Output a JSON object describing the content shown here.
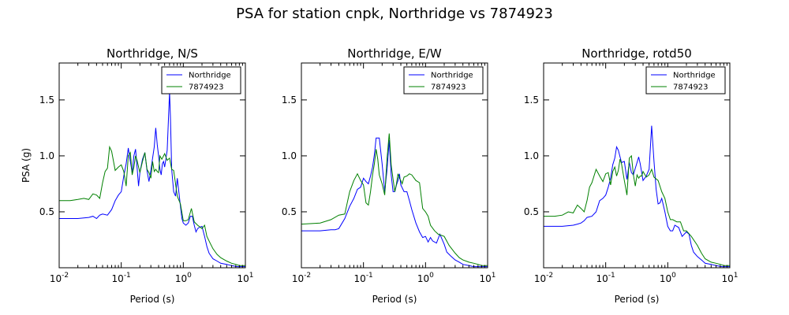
{
  "figure_title": "PSA for station cnpk, Northridge vs 7874923",
  "colors": {
    "Northridge": "#0000ff",
    "7874923": "#008000"
  },
  "chart_data": [
    {
      "type": "line",
      "title": "Northridge, N/S",
      "xlabel": "Period (s)",
      "ylabel": "PSA (g)",
      "xscale": "log",
      "xlim": [
        0.01,
        10
      ],
      "ylim": [
        0,
        1.83
      ],
      "xticks": [
        {
          "v": 0.01,
          "base": "10",
          "exp": "-2"
        },
        {
          "v": 0.1,
          "base": "10",
          "exp": "-1"
        },
        {
          "v": 1,
          "base": "10",
          "exp": "0"
        },
        {
          "v": 10,
          "base": "10",
          "exp": "1"
        }
      ],
      "yticks": [
        0.5,
        1.0,
        1.5
      ],
      "ytick_labels": [
        "0.5",
        "1.0",
        "1.5"
      ],
      "legend": "top-right",
      "series": [
        {
          "name": "Northridge",
          "color": "#0000ff",
          "x": [
            0.01,
            0.02,
            0.03,
            0.035,
            0.04,
            0.045,
            0.05,
            0.06,
            0.07,
            0.08,
            0.09,
            0.1,
            0.11,
            0.12,
            0.13,
            0.14,
            0.15,
            0.16,
            0.17,
            0.18,
            0.19,
            0.2,
            0.22,
            0.24,
            0.26,
            0.28,
            0.3,
            0.32,
            0.34,
            0.36,
            0.38,
            0.4,
            0.42,
            0.44,
            0.46,
            0.48,
            0.5,
            0.55,
            0.6,
            0.62,
            0.65,
            0.7,
            0.75,
            0.8,
            0.85,
            0.9,
            0.95,
            1.0,
            1.1,
            1.2,
            1.3,
            1.4,
            1.5,
            1.6,
            1.7,
            1.8,
            2.0,
            2.2,
            2.4,
            2.6,
            3.0,
            3.5,
            4.0,
            5.0,
            6.0,
            7.5,
            10.0
          ],
          "y": [
            0.44,
            0.44,
            0.45,
            0.46,
            0.44,
            0.47,
            0.48,
            0.47,
            0.52,
            0.6,
            0.65,
            0.68,
            0.82,
            0.93,
            1.07,
            0.95,
            0.85,
            1.0,
            1.06,
            0.9,
            0.73,
            0.85,
            0.97,
            1.03,
            0.87,
            0.77,
            0.87,
            0.98,
            1.08,
            1.25,
            1.1,
            1.0,
            0.88,
            0.83,
            0.93,
            0.95,
            0.9,
            1.05,
            1.57,
            1.35,
            0.88,
            0.68,
            0.64,
            0.8,
            0.67,
            0.55,
            0.44,
            0.4,
            0.38,
            0.4,
            0.46,
            0.46,
            0.38,
            0.32,
            0.35,
            0.36,
            0.37,
            0.28,
            0.19,
            0.13,
            0.08,
            0.06,
            0.04,
            0.03,
            0.02,
            0.01,
            0.01
          ]
        },
        {
          "name": "7874923",
          "color": "#008000",
          "x": [
            0.01,
            0.015,
            0.02,
            0.025,
            0.03,
            0.035,
            0.04,
            0.045,
            0.05,
            0.055,
            0.06,
            0.065,
            0.07,
            0.08,
            0.09,
            0.1,
            0.11,
            0.12,
            0.13,
            0.14,
            0.15,
            0.16,
            0.17,
            0.18,
            0.2,
            0.22,
            0.24,
            0.26,
            0.28,
            0.3,
            0.32,
            0.34,
            0.36,
            0.38,
            0.4,
            0.42,
            0.45,
            0.5,
            0.55,
            0.6,
            0.65,
            0.7,
            0.8,
            0.9,
            1.0,
            1.1,
            1.2,
            1.35,
            1.5,
            1.7,
            2.0,
            2.2,
            2.4,
            2.7,
            3.0,
            3.5,
            4.0,
            5.0,
            6.0,
            7.0,
            8.0,
            10.0
          ],
          "y": [
            0.6,
            0.6,
            0.61,
            0.62,
            0.61,
            0.66,
            0.65,
            0.62,
            0.76,
            0.86,
            0.89,
            1.08,
            1.04,
            0.87,
            0.9,
            0.92,
            0.86,
            0.73,
            1.0,
            1.03,
            0.83,
            0.9,
            1.0,
            0.96,
            0.85,
            0.95,
            1.03,
            0.88,
            0.85,
            0.8,
            0.95,
            0.86,
            0.88,
            0.86,
            0.85,
            1.0,
            0.97,
            1.02,
            0.96,
            0.98,
            0.88,
            0.87,
            0.64,
            0.57,
            0.42,
            0.42,
            0.43,
            0.53,
            0.41,
            0.38,
            0.35,
            0.38,
            0.28,
            0.22,
            0.17,
            0.12,
            0.09,
            0.06,
            0.04,
            0.03,
            0.02,
            0.02
          ]
        }
      ]
    },
    {
      "type": "line",
      "title": "Northridge, E/W",
      "xlabel": "Period (s)",
      "ylabel": "",
      "xscale": "log",
      "xlim": [
        0.01,
        10
      ],
      "ylim": [
        0,
        1.83
      ],
      "xticks": [
        {
          "v": 0.01,
          "base": "10",
          "exp": "-2"
        },
        {
          "v": 0.1,
          "base": "10",
          "exp": "-1"
        },
        {
          "v": 1,
          "base": "10",
          "exp": "0"
        },
        {
          "v": 10,
          "base": "10",
          "exp": "1"
        }
      ],
      "yticks": [
        0.5,
        1.0,
        1.5
      ],
      "ytick_labels": [
        "0.5",
        "1.0",
        "1.5"
      ],
      "legend": "top-right",
      "series": [
        {
          "name": "Northridge",
          "color": "#0000ff",
          "x": [
            0.01,
            0.02,
            0.03,
            0.035,
            0.04,
            0.05,
            0.06,
            0.07,
            0.08,
            0.09,
            0.1,
            0.11,
            0.12,
            0.13,
            0.14,
            0.15,
            0.16,
            0.18,
            0.2,
            0.22,
            0.24,
            0.26,
            0.28,
            0.3,
            0.32,
            0.34,
            0.36,
            0.38,
            0.4,
            0.45,
            0.5,
            0.55,
            0.6,
            0.7,
            0.8,
            0.9,
            1.0,
            1.1,
            1.2,
            1.3,
            1.5,
            1.7,
            2.0,
            2.2,
            2.4,
            2.6,
            3.0,
            3.5,
            4.0,
            5.0,
            6.0,
            7.5,
            10.0
          ],
          "y": [
            0.33,
            0.33,
            0.34,
            0.34,
            0.35,
            0.44,
            0.55,
            0.62,
            0.7,
            0.72,
            0.8,
            0.77,
            0.75,
            0.82,
            0.9,
            1.01,
            1.16,
            1.16,
            0.93,
            0.68,
            0.88,
            1.14,
            0.83,
            0.68,
            0.68,
            0.74,
            0.78,
            0.84,
            0.74,
            0.68,
            0.68,
            0.6,
            0.52,
            0.4,
            0.32,
            0.27,
            0.28,
            0.23,
            0.27,
            0.24,
            0.22,
            0.3,
            0.21,
            0.14,
            0.12,
            0.1,
            0.07,
            0.05,
            0.03,
            0.02,
            0.01,
            0.01,
            0.01
          ]
        },
        {
          "name": "7874923",
          "color": "#008000",
          "x": [
            0.01,
            0.02,
            0.03,
            0.04,
            0.05,
            0.06,
            0.07,
            0.08,
            0.09,
            0.1,
            0.11,
            0.12,
            0.13,
            0.14,
            0.15,
            0.16,
            0.17,
            0.18,
            0.2,
            0.22,
            0.24,
            0.26,
            0.28,
            0.3,
            0.32,
            0.34,
            0.36,
            0.38,
            0.4,
            0.42,
            0.45,
            0.5,
            0.55,
            0.6,
            0.7,
            0.8,
            0.9,
            1.0,
            1.1,
            1.2,
            1.4,
            1.6,
            2.0,
            2.4,
            3.0,
            3.5,
            4.0,
            5.0,
            6.0,
            7.0,
            8.0,
            10.0
          ],
          "y": [
            0.39,
            0.4,
            0.43,
            0.47,
            0.48,
            0.68,
            0.78,
            0.84,
            0.78,
            0.74,
            0.58,
            0.56,
            0.68,
            0.83,
            0.93,
            1.06,
            0.97,
            0.83,
            0.75,
            0.65,
            0.98,
            1.2,
            0.92,
            0.79,
            0.68,
            0.75,
            0.84,
            0.8,
            0.78,
            0.75,
            0.81,
            0.82,
            0.84,
            0.83,
            0.78,
            0.76,
            0.53,
            0.5,
            0.46,
            0.38,
            0.33,
            0.3,
            0.28,
            0.2,
            0.13,
            0.09,
            0.07,
            0.05,
            0.04,
            0.03,
            0.02,
            0.02
          ]
        }
      ]
    },
    {
      "type": "line",
      "title": "Northridge, rotd50",
      "xlabel": "Period (s)",
      "ylabel": "",
      "xscale": "log",
      "xlim": [
        0.01,
        10
      ],
      "ylim": [
        0,
        1.83
      ],
      "xticks": [
        {
          "v": 0.01,
          "base": "10",
          "exp": "-2"
        },
        {
          "v": 0.1,
          "base": "10",
          "exp": "-1"
        },
        {
          "v": 1,
          "base": "10",
          "exp": "0"
        },
        {
          "v": 10,
          "base": "10",
          "exp": "1"
        }
      ],
      "yticks": [
        0.5,
        1.0,
        1.5
      ],
      "ytick_labels": [
        "0.5",
        "1.0",
        "1.5"
      ],
      "legend": "top-right",
      "series": [
        {
          "name": "Northridge",
          "color": "#0000ff",
          "x": [
            0.01,
            0.02,
            0.03,
            0.035,
            0.04,
            0.045,
            0.05,
            0.06,
            0.07,
            0.08,
            0.09,
            0.1,
            0.11,
            0.12,
            0.13,
            0.14,
            0.15,
            0.16,
            0.18,
            0.2,
            0.22,
            0.24,
            0.26,
            0.28,
            0.3,
            0.32,
            0.34,
            0.36,
            0.38,
            0.4,
            0.45,
            0.5,
            0.55,
            0.6,
            0.65,
            0.7,
            0.75,
            0.8,
            0.9,
            1.0,
            1.1,
            1.2,
            1.3,
            1.5,
            1.7,
            2.0,
            2.2,
            2.4,
            2.6,
            3.0,
            3.5,
            4.0,
            5.0,
            6.0,
            7.5,
            10.0
          ],
          "y": [
            0.37,
            0.37,
            0.38,
            0.39,
            0.4,
            0.42,
            0.45,
            0.46,
            0.5,
            0.6,
            0.62,
            0.65,
            0.72,
            0.8,
            0.92,
            0.98,
            1.08,
            1.05,
            0.94,
            0.95,
            0.79,
            0.94,
            0.85,
            0.83,
            0.89,
            0.94,
            0.99,
            0.93,
            0.85,
            0.78,
            0.82,
            0.88,
            1.27,
            0.95,
            0.7,
            0.57,
            0.58,
            0.62,
            0.5,
            0.37,
            0.33,
            0.33,
            0.38,
            0.36,
            0.28,
            0.32,
            0.3,
            0.2,
            0.14,
            0.1,
            0.07,
            0.04,
            0.03,
            0.02,
            0.01,
            0.01
          ]
        },
        {
          "name": "7874923",
          "color": "#008000",
          "x": [
            0.01,
            0.015,
            0.02,
            0.025,
            0.03,
            0.035,
            0.04,
            0.045,
            0.05,
            0.055,
            0.06,
            0.07,
            0.08,
            0.09,
            0.1,
            0.11,
            0.12,
            0.13,
            0.14,
            0.15,
            0.16,
            0.17,
            0.18,
            0.2,
            0.22,
            0.24,
            0.26,
            0.28,
            0.3,
            0.32,
            0.34,
            0.36,
            0.38,
            0.4,
            0.45,
            0.5,
            0.55,
            0.6,
            0.7,
            0.8,
            0.9,
            1.0,
            1.1,
            1.2,
            1.4,
            1.6,
            1.8,
            2.0,
            2.4,
            3.0,
            3.5,
            4.0,
            5.0,
            6.0,
            7.0,
            8.0,
            10.0
          ],
          "y": [
            0.46,
            0.46,
            0.47,
            0.5,
            0.49,
            0.56,
            0.53,
            0.5,
            0.6,
            0.72,
            0.76,
            0.88,
            0.82,
            0.77,
            0.84,
            0.85,
            0.74,
            0.86,
            0.9,
            0.82,
            0.87,
            0.97,
            0.93,
            0.78,
            0.65,
            0.98,
            1.0,
            0.83,
            0.73,
            0.83,
            0.8,
            0.82,
            0.82,
            0.86,
            0.81,
            0.83,
            0.88,
            0.81,
            0.78,
            0.68,
            0.62,
            0.5,
            0.43,
            0.43,
            0.41,
            0.41,
            0.33,
            0.33,
            0.28,
            0.2,
            0.13,
            0.08,
            0.05,
            0.04,
            0.03,
            0.02,
            0.02
          ]
        }
      ]
    }
  ]
}
